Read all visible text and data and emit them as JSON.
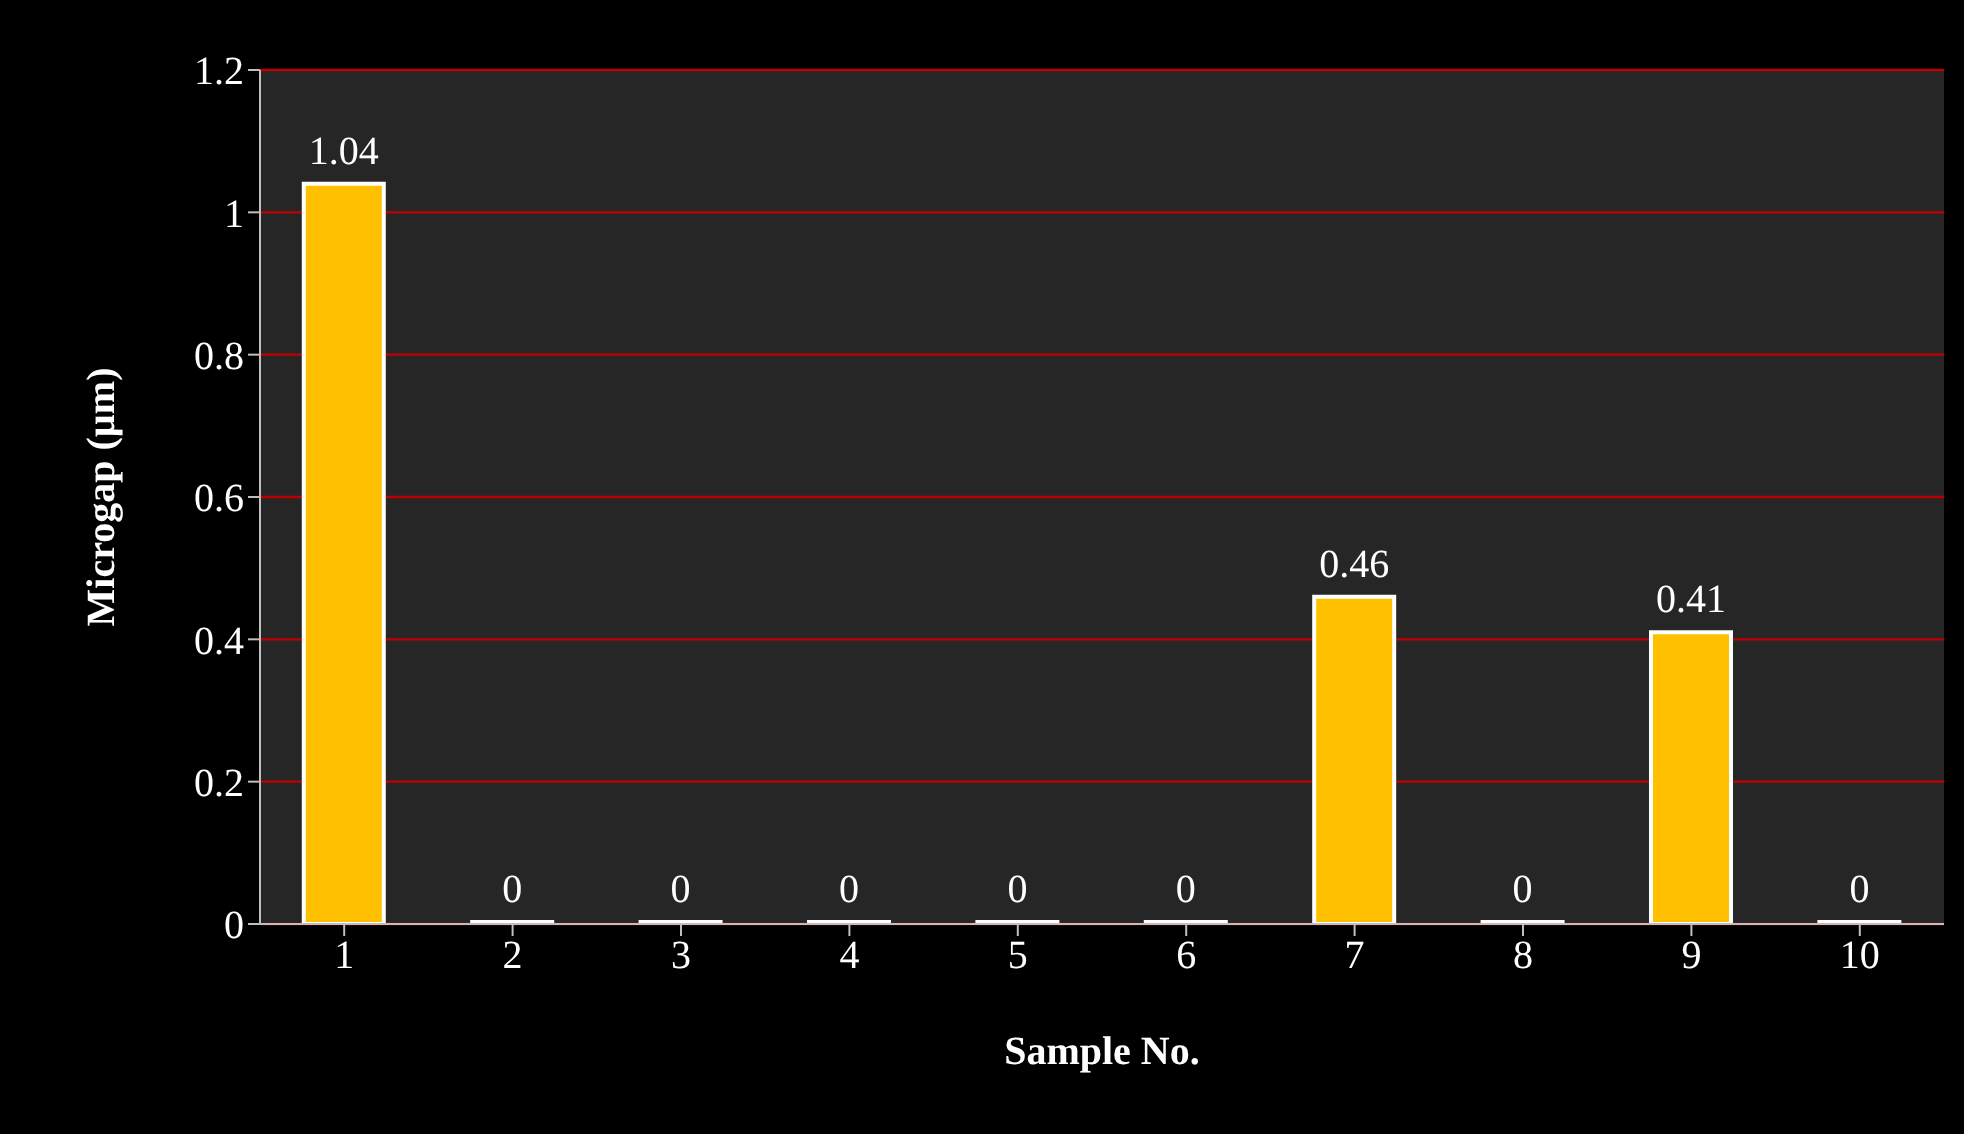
{
  "chart_data": {
    "type": "bar",
    "xlabel": "Sample No.",
    "ylabel": "Microgap (µm)",
    "categories": [
      "1",
      "2",
      "3",
      "4",
      "5",
      "6",
      "7",
      "8",
      "9",
      "10"
    ],
    "values": [
      1.04,
      0,
      0,
      0,
      0,
      0,
      0.46,
      0,
      0.41,
      0
    ],
    "color": "#ffc000",
    "ylim": [
      0,
      1.2
    ],
    "yticks": [
      0,
      0.2,
      0.4,
      0.6,
      0.8,
      1,
      1.2
    ],
    "grid": "y",
    "data_labels": true
  }
}
